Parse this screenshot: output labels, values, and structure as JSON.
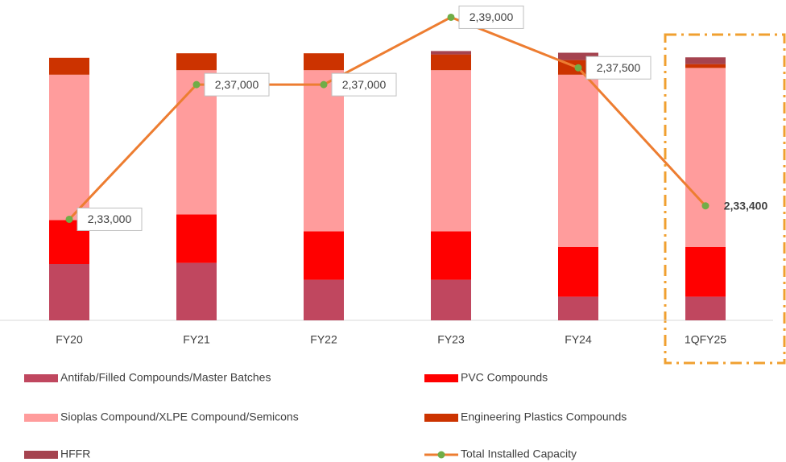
{
  "chart_data": {
    "type": "bar",
    "categories": [
      "FY20",
      "FY21",
      "FY22",
      "FY23",
      "FY24",
      "1QFY25"
    ],
    "stacked": true,
    "ylim": [
      0,
      260000
    ],
    "series": [
      {
        "name": "Antifab/Filled Compounds/Master Batches",
        "color": "#c0475f",
        "values": [
          50000,
          51000,
          36000,
          36000,
          21000,
          21000
        ]
      },
      {
        "name": "PVC Compounds",
        "color": "#ff0000",
        "values": [
          39000,
          43000,
          43000,
          43000,
          44000,
          44000
        ]
      },
      {
        "name": "Sioplas Compound/XLPE Compound/Semicons",
        "color": "#ff9c9c",
        "values": [
          129000,
          128000,
          143000,
          143000,
          153000,
          159000
        ]
      },
      {
        "name": "Engineering Plastics Compounds",
        "color": "#cc3300",
        "values": [
          15000,
          15000,
          15000,
          14000,
          13000,
          3400
        ]
      },
      {
        "name": "HFFR",
        "color": "#a5434f",
        "values": [
          0,
          0,
          0,
          3000,
          6500,
          6000
        ]
      },
      {
        "name": "Total Installed Capacity",
        "type": "line",
        "axis": "y2",
        "color": "#ed7d31",
        "marker_color": "#70ad47",
        "values": [
          233000,
          237000,
          237000,
          239000,
          237500,
          233400
        ],
        "value_labels": [
          "2,33,000",
          "2,37,000",
          "2,37,000",
          "2,39,000",
          "2,37,500",
          "2,33,400"
        ]
      }
    ],
    "y2lim": [
      230000,
      238700
    ],
    "legend": "bottom"
  }
}
